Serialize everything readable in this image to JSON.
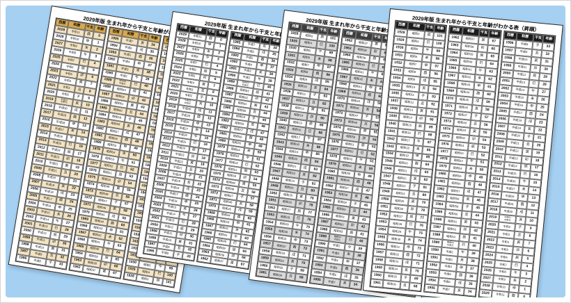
{
  "background": {
    "frame_color": "#ffffff",
    "canvas_color": "#a5d0f2"
  },
  "table": {
    "headers": [
      "西暦",
      "和暦",
      "干支",
      "年齢"
    ],
    "rows": [
      [
        "1928",
        "昭和3",
        "辰",
        "101"
      ],
      [
        "1929",
        "昭和4",
        "巳",
        "100"
      ],
      [
        "1930",
        "昭和5",
        "午",
        "99"
      ],
      [
        "1931",
        "昭和6",
        "未",
        "98"
      ],
      [
        "1932",
        "昭和7",
        "申",
        "97"
      ],
      [
        "1933",
        "昭和8",
        "酉",
        "96"
      ],
      [
        "1934",
        "昭和9",
        "戌",
        "95"
      ],
      [
        "1935",
        "昭和10",
        "亥",
        "94"
      ],
      [
        "1936",
        "昭和11",
        "子",
        "93"
      ],
      [
        "1937",
        "昭和12",
        "丑",
        "92"
      ],
      [
        "1938",
        "昭和13",
        "寅",
        "91"
      ],
      [
        "1939",
        "昭和14",
        "卯",
        "90"
      ],
      [
        "1940",
        "昭和15",
        "辰",
        "89"
      ],
      [
        "1941",
        "昭和16",
        "巳",
        "88"
      ],
      [
        "1942",
        "昭和17",
        "午",
        "87"
      ],
      [
        "1943",
        "昭和18",
        "未",
        "86"
      ],
      [
        "1944",
        "昭和19",
        "申",
        "85"
      ],
      [
        "1945",
        "昭和20",
        "酉",
        "84"
      ],
      [
        "1946",
        "昭和21",
        "戌",
        "83"
      ],
      [
        "1947",
        "昭和22",
        "亥",
        "82"
      ],
      [
        "1948",
        "昭和23",
        "子",
        "81"
      ],
      [
        "1949",
        "昭和24",
        "丑",
        "80"
      ],
      [
        "1950",
        "昭和25",
        "寅",
        "79"
      ],
      [
        "1951",
        "昭和26",
        "卯",
        "78"
      ],
      [
        "1952",
        "昭和27",
        "辰",
        "77"
      ],
      [
        "1953",
        "昭和28",
        "巳",
        "76"
      ],
      [
        "1954",
        "昭和29",
        "午",
        "75"
      ],
      [
        "1955",
        "昭和30",
        "未",
        "74"
      ],
      [
        "1956",
        "昭和31",
        "申",
        "73"
      ],
      [
        "1957",
        "昭和32",
        "酉",
        "72"
      ],
      [
        "1958",
        "昭和33",
        "戌",
        "71"
      ],
      [
        "1959",
        "昭和34",
        "亥",
        "70"
      ],
      [
        "1960",
        "昭和35",
        "子",
        "69"
      ],
      [
        "1961",
        "昭和36",
        "丑",
        "68"
      ],
      [
        "1962",
        "昭和37",
        "寅",
        "67"
      ],
      [
        "1963",
        "昭和38",
        "卯",
        "66"
      ],
      [
        "1964",
        "昭和39",
        "辰",
        "65"
      ],
      [
        "1965",
        "昭和40",
        "巳",
        "64"
      ],
      [
        "1966",
        "昭和41",
        "午",
        "63"
      ],
      [
        "1967",
        "昭和42",
        "未",
        "62"
      ],
      [
        "1968",
        "昭和43",
        "申",
        "61"
      ],
      [
        "1969",
        "昭和44",
        "酉",
        "60"
      ],
      [
        "1970",
        "昭和45",
        "戌",
        "59"
      ],
      [
        "1971",
        "昭和46",
        "亥",
        "58"
      ],
      [
        "1972",
        "昭和47",
        "子",
        "57"
      ],
      [
        "1973",
        "昭和48",
        "丑",
        "56"
      ],
      [
        "1974",
        "昭和49",
        "寅",
        "55"
      ],
      [
        "1975",
        "昭和50",
        "卯",
        "54"
      ],
      [
        "1976",
        "昭和51",
        "辰",
        "53"
      ],
      [
        "1977",
        "昭和52",
        "巳",
        "52"
      ],
      [
        "1978",
        "昭和53",
        "午",
        "51"
      ],
      [
        "1979",
        "昭和54",
        "未",
        "50"
      ],
      [
        "1980",
        "昭和55",
        "申",
        "49"
      ],
      [
        "1981",
        "昭和56",
        "酉",
        "48"
      ],
      [
        "1982",
        "昭和57",
        "戌",
        "47"
      ],
      [
        "1983",
        "昭和58",
        "亥",
        "46"
      ],
      [
        "1984",
        "昭和59",
        "子",
        "45"
      ],
      [
        "1985",
        "昭和60",
        "丑",
        "44"
      ],
      [
        "1986",
        "昭和61",
        "寅",
        "43"
      ],
      [
        "1987",
        "昭和62",
        "卯",
        "42"
      ],
      [
        "1988",
        "昭和63",
        "辰",
        "41"
      ],
      [
        "1989",
        "昭和64/平成元",
        "巳",
        "40"
      ],
      [
        "1990",
        "平成2",
        "午",
        "39"
      ],
      [
        "1991",
        "平成3",
        "未",
        "38"
      ],
      [
        "1992",
        "平成4",
        "申",
        "37"
      ],
      [
        "1993",
        "平成5",
        "酉",
        "36"
      ],
      [
        "1994",
        "平成6",
        "戌",
        "35"
      ],
      [
        "1995",
        "平成7",
        "亥",
        "34"
      ],
      [
        "1996",
        "平成8",
        "子",
        "33"
      ],
      [
        "1997",
        "平成9",
        "丑",
        "32"
      ],
      [
        "1998",
        "平成10",
        "寅",
        "31"
      ],
      [
        "1999",
        "平成11",
        "卯",
        "30"
      ],
      [
        "2000",
        "平成12",
        "辰",
        "29"
      ],
      [
        "2001",
        "平成13",
        "巳",
        "28"
      ],
      [
        "2002",
        "平成14",
        "午",
        "27"
      ],
      [
        "2003",
        "平成15",
        "未",
        "26"
      ],
      [
        "2004",
        "平成16",
        "申",
        "25"
      ],
      [
        "2005",
        "平成17",
        "酉",
        "24"
      ],
      [
        "2006",
        "平成18",
        "戌",
        "23"
      ],
      [
        "2007",
        "平成19",
        "亥",
        "22"
      ],
      [
        "2008",
        "平成20",
        "子",
        "21"
      ],
      [
        "2009",
        "平成21",
        "丑",
        "20"
      ],
      [
        "2010",
        "平成22",
        "寅",
        "19"
      ],
      [
        "2011",
        "平成23",
        "卯",
        "18"
      ],
      [
        "2012",
        "平成24",
        "辰",
        "17"
      ],
      [
        "2013",
        "平成25",
        "巳",
        "16"
      ],
      [
        "2014",
        "平成26",
        "午",
        "15"
      ],
      [
        "2015",
        "平成27",
        "未",
        "14"
      ],
      [
        "2016",
        "平成28",
        "申",
        "13"
      ],
      [
        "2017",
        "平成29",
        "酉",
        "12"
      ],
      [
        "2018",
        "平成30",
        "戌",
        "11"
      ],
      [
        "2019",
        "平成31/令和元",
        "亥",
        "10"
      ],
      [
        "2020",
        "令和2",
        "子",
        "9"
      ],
      [
        "2021",
        "令和3",
        "丑",
        "8"
      ],
      [
        "2022",
        "令和4",
        "寅",
        "7"
      ],
      [
        "2023",
        "令和5",
        "卯",
        "6"
      ],
      [
        "2024",
        "令和6",
        "辰",
        "5"
      ],
      [
        "2025",
        "令和7",
        "巳",
        "4"
      ],
      [
        "2026",
        "令和8",
        "午",
        "3"
      ],
      [
        "2027",
        "令和9",
        "未",
        "2"
      ],
      [
        "2028",
        "令和10",
        "申",
        "1"
      ],
      [
        "2029",
        "令和11",
        "酉",
        "0"
      ]
    ]
  },
  "pages": [
    {
      "title": "2029年版 生まれ年から干支と年齢がわかる表",
      "order": "desc",
      "header_bg": "#d8a94c",
      "header_fg": "#1a1200",
      "stripe": "#f4e4c2"
    },
    {
      "title": "2029年版 生まれ年から干支と年齢がわかる表",
      "order": "desc",
      "header_bg": "#1c1c1c",
      "header_fg": "#ffffff",
      "stripe": ""
    },
    {
      "title": "2029年版 生まれ年から干支と年齢がわかる表（昇順）",
      "order": "asc",
      "header_bg": "#3d3d3d",
      "header_fg": "#ffffff",
      "stripe": "#d9d9d9"
    },
    {
      "title": "2029年版 生まれ年から干支と年齢がわかる表（昇順）",
      "order": "asc",
      "header_bg": "#1c1c1c",
      "header_fg": "#ffffff",
      "stripe": ""
    }
  ]
}
